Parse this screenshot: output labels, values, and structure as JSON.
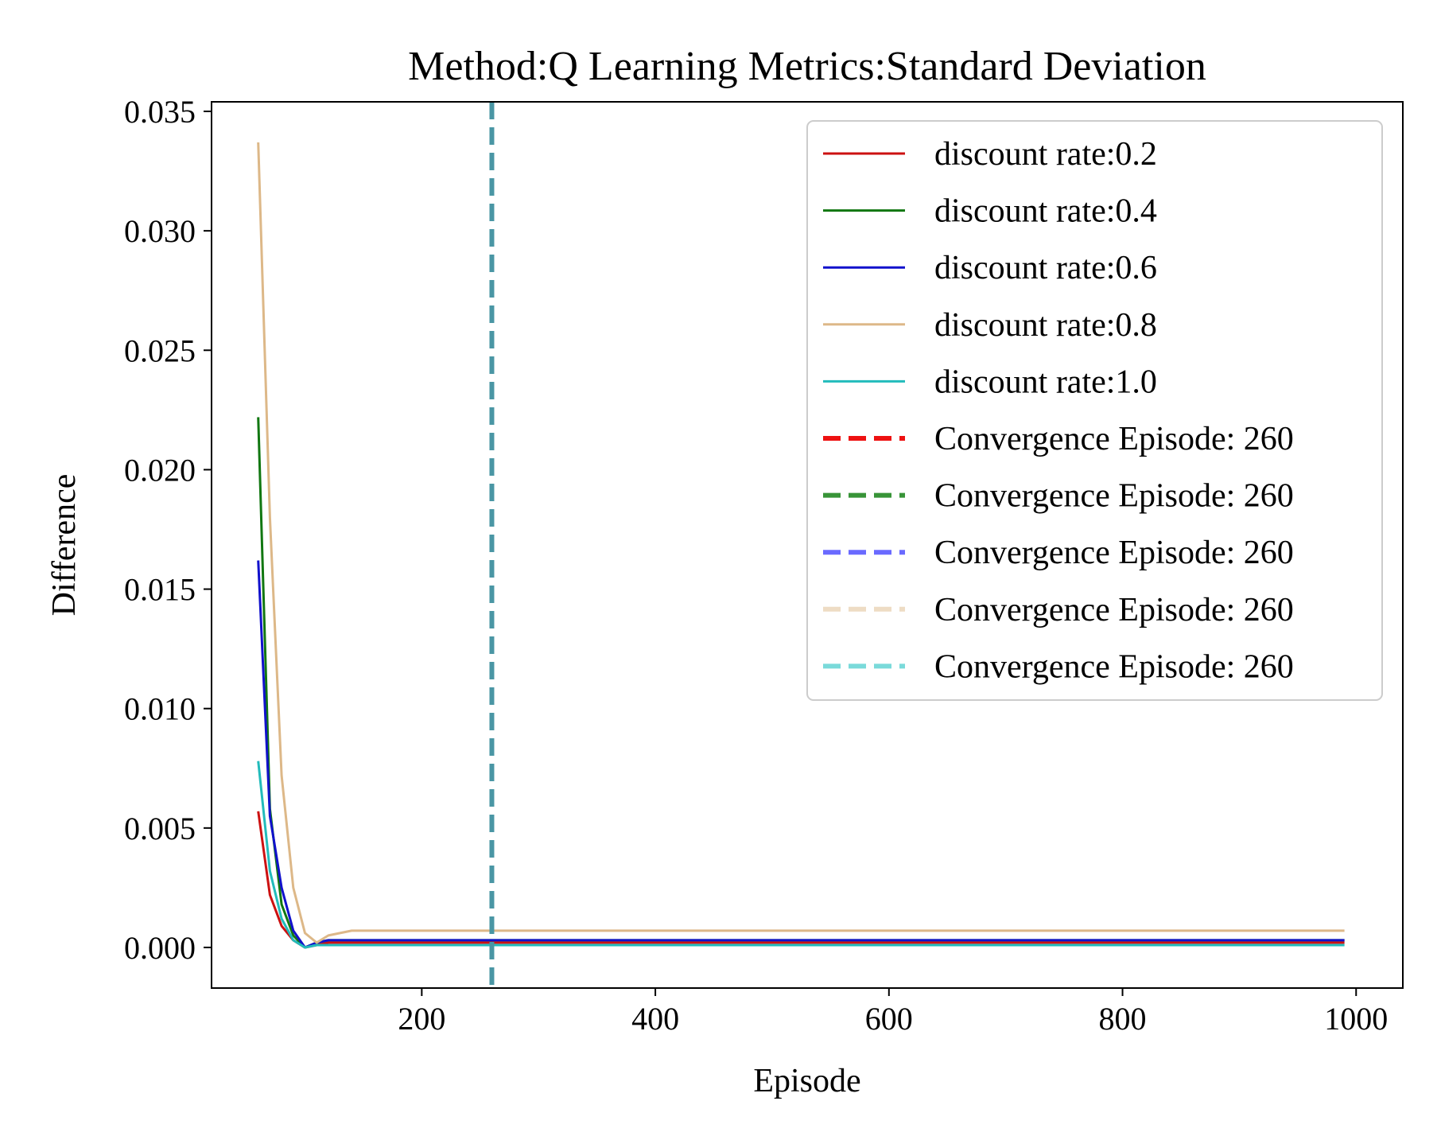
{
  "chart_data": {
    "type": "line",
    "title": "Method:Q Learning   Metrics:Standard Deviation",
    "xlabel": "Episode",
    "ylabel": "Difference",
    "xlim": [
      20,
      1040
    ],
    "ylim": [
      -0.0017,
      0.0354
    ],
    "xticks": [
      200,
      400,
      600,
      800,
      1000
    ],
    "yticks": [
      0.0,
      0.005,
      0.01,
      0.015,
      0.02,
      0.025,
      0.03,
      0.035
    ],
    "ytick_labels": [
      "0.000",
      "0.005",
      "0.010",
      "0.015",
      "0.020",
      "0.025",
      "0.030",
      "0.035"
    ],
    "grid": false,
    "legend_position": "top-right",
    "x": [
      60,
      70,
      80,
      90,
      100,
      110,
      120,
      130,
      140,
      150,
      160,
      200,
      300,
      400,
      500,
      600,
      700,
      800,
      900,
      990
    ],
    "series": [
      {
        "name": "discount rate:0.2",
        "color": "#cc1111",
        "values": [
          0.0057,
          0.0022,
          0.0009,
          0.0003,
          0.0,
          0.0001,
          0.0002,
          0.0002,
          0.0002,
          0.0002,
          0.0002,
          0.0002,
          0.0002,
          0.0002,
          0.0002,
          0.0002,
          0.0002,
          0.0002,
          0.0002,
          0.0002
        ]
      },
      {
        "name": "discount rate:0.4",
        "color": "#117711",
        "values": [
          0.0222,
          0.0058,
          0.0018,
          0.0005,
          0.0,
          0.0002,
          0.0003,
          0.0003,
          0.0003,
          0.0003,
          0.0003,
          0.0003,
          0.0003,
          0.0003,
          0.0003,
          0.0003,
          0.0003,
          0.0003,
          0.0003,
          0.0003
        ]
      },
      {
        "name": "discount rate:0.6",
        "color": "#1111cc",
        "values": [
          0.0162,
          0.0055,
          0.0025,
          0.0007,
          0.0,
          0.0002,
          0.0003,
          0.0003,
          0.0003,
          0.0003,
          0.0003,
          0.0003,
          0.0003,
          0.0003,
          0.0003,
          0.0003,
          0.0003,
          0.0003,
          0.0003,
          0.0003
        ]
      },
      {
        "name": "discount rate:0.8",
        "color": "#ddb888",
        "values": [
          0.0337,
          0.018,
          0.0072,
          0.0025,
          0.0006,
          0.0002,
          0.0005,
          0.0006,
          0.0007,
          0.0007,
          0.0007,
          0.0007,
          0.0007,
          0.0007,
          0.0007,
          0.0007,
          0.0007,
          0.0007,
          0.0007,
          0.0007
        ]
      },
      {
        "name": "discount rate:1.0",
        "color": "#22bbbb",
        "values": [
          0.0078,
          0.0032,
          0.0012,
          0.0003,
          0.0,
          0.0001,
          0.0001,
          0.0001,
          0.0001,
          0.0001,
          0.0001,
          0.0001,
          0.0001,
          0.0001,
          0.0001,
          0.0001,
          0.0001,
          0.0001,
          0.0001,
          0.0001
        ]
      }
    ],
    "vlines": [
      {
        "name": "Convergence Episode: 260",
        "x": 260,
        "color": "#ee1111",
        "alpha": 1.0
      },
      {
        "name": "Convergence Episode: 260",
        "x": 260,
        "color": "#228822",
        "alpha": 0.9
      },
      {
        "name": "Convergence Episode: 260",
        "x": 260,
        "color": "#6a6aff",
        "alpha": 1.0
      },
      {
        "name": "Convergence Episode: 260",
        "x": 260,
        "color": "#eedcc4",
        "alpha": 1.0
      },
      {
        "name": "Convergence Episode: 260",
        "x": 260,
        "color": "#7adada",
        "alpha": 1.0
      }
    ],
    "vline_visible_color": "#4a96a4"
  }
}
